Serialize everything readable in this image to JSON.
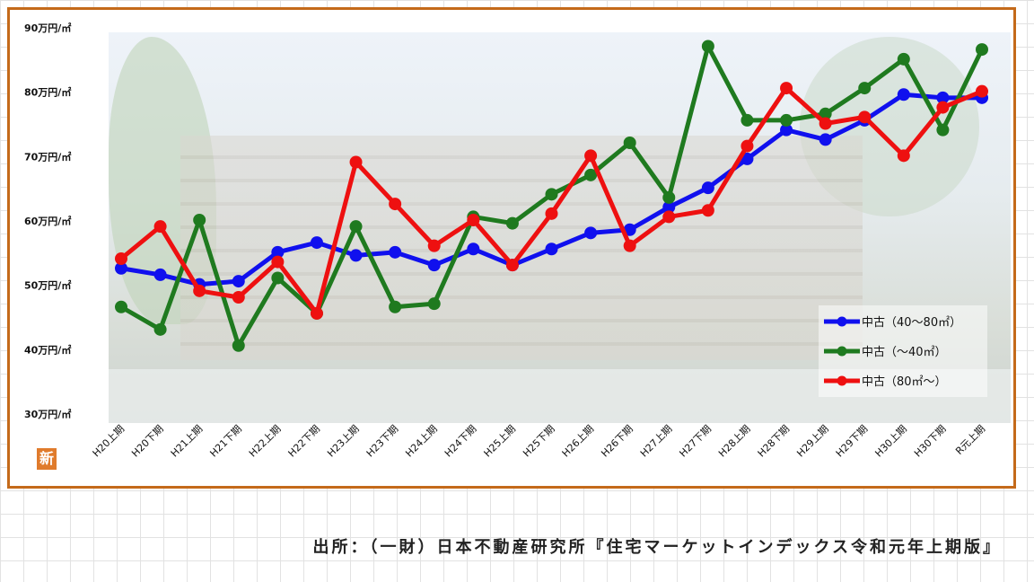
{
  "source_text": "出所：（一財）日本不動産研究所『住宅マーケットインデックス令和元年上期版』",
  "badge_text": "新",
  "chart_data": {
    "type": "line",
    "title": "",
    "xlabel": "",
    "ylabel": "",
    "ylim": [
      30,
      90
    ],
    "yticks": [
      {
        "value": 30,
        "label": "30万円/㎡"
      },
      {
        "value": 40,
        "label": "40万円/㎡"
      },
      {
        "value": 50,
        "label": "50万円/㎡"
      },
      {
        "value": 60,
        "label": "60万円/㎡"
      },
      {
        "value": 70,
        "label": "70万円/㎡"
      },
      {
        "value": 80,
        "label": "80万円/㎡"
      },
      {
        "value": 90,
        "label": "90万円/㎡"
      }
    ],
    "categories": [
      "H20上期",
      "H20下期",
      "H21上期",
      "H21下期",
      "H22上期",
      "H22下期",
      "H23上期",
      "H23下期",
      "H24上期",
      "H24下期",
      "H25上期",
      "H25下期",
      "H26上期",
      "H26下期",
      "H27上期",
      "H27下期",
      "H28上期",
      "H28下期",
      "H29上期",
      "H29下期",
      "H30上期",
      "H30下期",
      "R元上期"
    ],
    "legend_position": "right",
    "series": [
      {
        "name": "中古（40～80㎡）",
        "color": "#1010ee",
        "marker": "diamond",
        "values": [
          52.5,
          51.5,
          50,
          50.5,
          55,
          56.5,
          54.5,
          55,
          53,
          55.5,
          53,
          55.5,
          58,
          58.5,
          62,
          65,
          69.5,
          74,
          72.5,
          75.5,
          79.5,
          79,
          79
        ]
      },
      {
        "name": "中古（～40㎡）",
        "color": "#1f7a1f",
        "marker": "triangle",
        "values": [
          46.5,
          43,
          60,
          40.5,
          51,
          45.5,
          59,
          46.5,
          47,
          60.5,
          59.5,
          64,
          67,
          72,
          63.5,
          87,
          75.5,
          75.5,
          76.5,
          80.5,
          85,
          74,
          86.5
        ]
      },
      {
        "name": "中古（80㎡～）",
        "color": "#ee1010",
        "marker": "square",
        "values": [
          54,
          59,
          49,
          48,
          53.5,
          45.5,
          69,
          62.5,
          56,
          60,
          53,
          61,
          70,
          56,
          60.5,
          61.5,
          71.5,
          80.5,
          75,
          76,
          70,
          77.5,
          80
        ]
      }
    ]
  }
}
